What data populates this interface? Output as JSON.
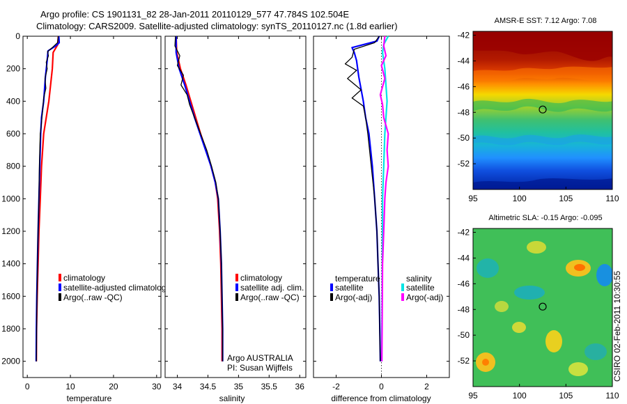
{
  "header": {
    "line1": "Argo profile: CS 1901131_82 28-Jan-2011 20110129_577 47.784S 102.504E",
    "line2": "Climatology: CARS2009. Satellite-adjusted climatology: synTS_20110127.nc (1.8d earlier)"
  },
  "colors": {
    "climatology": "#ff0000",
    "satellite": "#0000ff",
    "argo": "#000000",
    "sat_sal": "#00e5e5",
    "argo_sal": "#ff00ff"
  },
  "chart_data": [
    {
      "id": "temperature",
      "type": "line",
      "xlabel": "temperature",
      "ylabel": "",
      "xlim": [
        -1,
        31
      ],
      "ylim": [
        2100,
        0
      ],
      "xticks": [
        "0",
        "10",
        "20",
        "30"
      ],
      "xtick_values": [
        0,
        10,
        20,
        30
      ],
      "yticks": [
        "0",
        "200",
        "400",
        "600",
        "800",
        "1000",
        "1200",
        "1400",
        "1600",
        "1800",
        "2000"
      ],
      "ytick_values": [
        0,
        200,
        400,
        600,
        800,
        1000,
        1200,
        1400,
        1600,
        1800,
        2000
      ],
      "legend": [
        "climatology",
        "satellite-adjusted climatology",
        "Argo(..raw -QC)"
      ],
      "series": [
        {
          "name": "climatology",
          "color": "#ff0000",
          "width": 2.2,
          "points": [
            [
              7.2,
              0
            ],
            [
              7.1,
              50
            ],
            [
              6.0,
              100
            ],
            [
              5.8,
              200
            ],
            [
              5.4,
              300
            ],
            [
              5.0,
              400
            ],
            [
              4.4,
              500
            ],
            [
              3.8,
              600
            ],
            [
              3.3,
              800
            ],
            [
              3.0,
              1000
            ],
            [
              2.7,
              1200
            ],
            [
              2.5,
              1400
            ],
            [
              2.3,
              1600
            ],
            [
              2.15,
              1800
            ],
            [
              2.1,
              2000
            ]
          ]
        },
        {
          "name": "satellite-adjusted climatology",
          "color": "#0000ff",
          "width": 2.2,
          "points": [
            [
              7.3,
              0
            ],
            [
              7.4,
              40
            ],
            [
              6.6,
              60
            ],
            [
              4.8,
              90
            ],
            [
              4.6,
              150
            ],
            [
              4.2,
              250
            ],
            [
              3.8,
              400
            ],
            [
              3.3,
              500
            ],
            [
              3.1,
              600
            ],
            [
              2.9,
              800
            ],
            [
              2.7,
              1000
            ],
            [
              2.5,
              1200
            ],
            [
              2.35,
              1400
            ],
            [
              2.2,
              1600
            ],
            [
              2.1,
              1800
            ],
            [
              2.05,
              2000
            ]
          ]
        },
        {
          "name": "Argo(..raw -QC)",
          "color": "#000000",
          "width": 1.3,
          "points": [
            [
              7.2,
              0
            ],
            [
              7.0,
              40
            ],
            [
              5.8,
              70
            ],
            [
              4.7,
              95
            ],
            [
              4.9,
              120
            ],
            [
              4.4,
              160
            ],
            [
              4.6,
              200
            ],
            [
              4.1,
              260
            ],
            [
              4.3,
              320
            ],
            [
              3.8,
              380
            ],
            [
              3.6,
              440
            ],
            [
              3.4,
              500
            ],
            [
              3.2,
              560
            ],
            [
              3.0,
              600
            ],
            [
              2.9,
              700
            ],
            [
              2.8,
              800
            ],
            [
              2.7,
              1000
            ],
            [
              2.5,
              1200
            ],
            [
              2.35,
              1400
            ],
            [
              2.25,
              1600
            ],
            [
              2.15,
              1800
            ],
            [
              2.1,
              2000
            ]
          ]
        }
      ]
    },
    {
      "id": "salinity",
      "type": "line",
      "xlabel": "salinity",
      "ylabel": "",
      "xlim": [
        33.8,
        36.1
      ],
      "ylim": [
        2100,
        0
      ],
      "xticks": [
        "34",
        "34.5",
        "35",
        "35.5",
        "36"
      ],
      "xtick_values": [
        34,
        34.5,
        35,
        35.5,
        36
      ],
      "legend": [
        "climatology",
        "satellite adj. clim.",
        "Argo(..raw -QC)"
      ],
      "annotation": [
        "Argo AUSTRALIA",
        "PI: Susan Wijffels"
      ],
      "series": [
        {
          "name": "climatology",
          "color": "#ff0000",
          "width": 2.2,
          "points": [
            [
              33.98,
              0
            ],
            [
              33.99,
              100
            ],
            [
              34.05,
              200
            ],
            [
              34.14,
              300
            ],
            [
              34.22,
              400
            ],
            [
              34.3,
              500
            ],
            [
              34.38,
              600
            ],
            [
              34.47,
              700
            ],
            [
              34.55,
              800
            ],
            [
              34.62,
              900
            ],
            [
              34.66,
              1000
            ],
            [
              34.69,
              1200
            ],
            [
              34.71,
              1400
            ],
            [
              34.72,
              1600
            ],
            [
              34.73,
              1800
            ],
            [
              34.73,
              2000
            ]
          ]
        },
        {
          "name": "satellite adj. clim.",
          "color": "#0000ff",
          "width": 2.2,
          "points": [
            [
              33.98,
              0
            ],
            [
              33.98,
              100
            ],
            [
              34.03,
              200
            ],
            [
              34.12,
              300
            ],
            [
              34.2,
              400
            ],
            [
              34.28,
              500
            ],
            [
              34.37,
              600
            ],
            [
              34.46,
              700
            ],
            [
              34.55,
              800
            ],
            [
              34.62,
              900
            ],
            [
              34.67,
              1000
            ],
            [
              34.7,
              1200
            ],
            [
              34.72,
              1400
            ],
            [
              34.73,
              1600
            ],
            [
              34.74,
              1800
            ],
            [
              34.74,
              2000
            ]
          ]
        },
        {
          "name": "Argo(..raw -QC)",
          "color": "#000000",
          "width": 1.3,
          "points": [
            [
              33.97,
              0
            ],
            [
              33.96,
              60
            ],
            [
              34.04,
              120
            ],
            [
              34.0,
              180
            ],
            [
              34.1,
              240
            ],
            [
              34.06,
              300
            ],
            [
              34.16,
              360
            ],
            [
              34.2,
              420
            ],
            [
              34.26,
              480
            ],
            [
              34.32,
              540
            ],
            [
              34.4,
              620
            ],
            [
              34.48,
              700
            ],
            [
              34.56,
              800
            ],
            [
              34.63,
              900
            ],
            [
              34.67,
              1000
            ],
            [
              34.7,
              1200
            ],
            [
              34.72,
              1400
            ],
            [
              34.73,
              1600
            ],
            [
              34.74,
              1800
            ],
            [
              34.74,
              2000
            ]
          ]
        }
      ]
    },
    {
      "id": "difference",
      "type": "line",
      "xlabel": "difference from climatology",
      "ylabel": "",
      "xlim": [
        -3,
        3
      ],
      "ylim": [
        2100,
        0
      ],
      "xticks": [
        "-2",
        "0",
        "2"
      ],
      "xtick_values": [
        -2,
        0,
        2
      ],
      "legend_titles": [
        "temperature",
        "salinity"
      ],
      "legend": [
        "satellite",
        "Argo(-adj)",
        "satellite",
        "Argo(-adj)"
      ],
      "series": [
        {
          "name": "temperature satellite",
          "color": "#0000ff",
          "width": 2.2,
          "points": [
            [
              -0.1,
              0
            ],
            [
              -0.2,
              30
            ],
            [
              -1.3,
              70
            ],
            [
              -1.2,
              100
            ],
            [
              -1.1,
              150
            ],
            [
              -1.0,
              250
            ],
            [
              -0.8,
              400
            ],
            [
              -0.7,
              500
            ],
            [
              -0.55,
              600
            ],
            [
              -0.4,
              800
            ],
            [
              -0.3,
              1000
            ],
            [
              -0.2,
              1200
            ],
            [
              -0.15,
              1400
            ],
            [
              -0.1,
              1600
            ],
            [
              -0.07,
              1800
            ],
            [
              -0.05,
              2000
            ]
          ]
        },
        {
          "name": "temperature Argo(-adj)",
          "color": "#000000",
          "width": 1.3,
          "points": [
            [
              -0.1,
              0
            ],
            [
              -0.3,
              40
            ],
            [
              -1.2,
              80
            ],
            [
              -1.3,
              130
            ],
            [
              -1.6,
              170
            ],
            [
              -1.1,
              210
            ],
            [
              -1.5,
              260
            ],
            [
              -0.9,
              330
            ],
            [
              -1.3,
              380
            ],
            [
              -0.8,
              430
            ],
            [
              -0.7,
              500
            ],
            [
              -0.6,
              600
            ],
            [
              -0.45,
              800
            ],
            [
              -0.3,
              1000
            ],
            [
              -0.2,
              1200
            ],
            [
              -0.15,
              1400
            ],
            [
              -0.1,
              1600
            ],
            [
              -0.08,
              1800
            ],
            [
              -0.05,
              2000
            ]
          ]
        },
        {
          "name": "salinity satellite",
          "color": "#00e5e5",
          "width": 2.2,
          "points": [
            [
              0.3,
              0
            ],
            [
              0.1,
              50
            ],
            [
              0.05,
              100
            ],
            [
              0.15,
              200
            ],
            [
              0.2,
              300
            ],
            [
              0.25,
              400
            ],
            [
              0.2,
              500
            ],
            [
              0.15,
              600
            ],
            [
              0.1,
              800
            ],
            [
              0.05,
              1000
            ],
            [
              0.05,
              1200
            ],
            [
              0.04,
              1400
            ],
            [
              0.03,
              1600
            ],
            [
              0.02,
              1800
            ],
            [
              0.02,
              2000
            ]
          ]
        },
        {
          "name": "salinity Argo(-adj)",
          "color": "#ff00ff",
          "width": 2.2,
          "points": [
            [
              0.15,
              0
            ],
            [
              0.1,
              60
            ],
            [
              0.2,
              120
            ],
            [
              0.0,
              180
            ],
            [
              0.15,
              260
            ],
            [
              -0.05,
              360
            ],
            [
              0.05,
              420
            ],
            [
              0.1,
              500
            ],
            [
              0.3,
              600
            ],
            [
              0.25,
              700
            ],
            [
              0.3,
              800
            ],
            [
              0.2,
              900
            ],
            [
              0.15,
              1000
            ],
            [
              0.1,
              1200
            ],
            [
              0.05,
              1400
            ],
            [
              0.04,
              1600
            ],
            [
              0.03,
              1800
            ],
            [
              0.02,
              2000
            ]
          ]
        }
      ]
    }
  ],
  "maps": {
    "sst": {
      "title": "AMSR-E SST: 7.12 Argo: 7.08",
      "xticks": [
        "95",
        "100",
        "105",
        "110"
      ],
      "xtick_values": [
        95,
        100,
        105,
        110
      ],
      "yticks": [
        "-42",
        "-44",
        "-46",
        "-48",
        "-50",
        "-52"
      ],
      "ytick_values": [
        -42,
        -44,
        -46,
        -48,
        -50,
        -52
      ],
      "lon": [
        95,
        110
      ],
      "lat": [
        -54,
        -41.7
      ],
      "marker": [
        102.5,
        -47.78
      ]
    },
    "sla": {
      "title": "Altimetric SLA: -0.15 Argo: -0.095",
      "xticks": [
        "95",
        "100",
        "105",
        "110"
      ],
      "xtick_values": [
        95,
        100,
        105,
        110
      ],
      "yticks": [
        "-42",
        "-44",
        "-46",
        "-48",
        "-50",
        "-52"
      ],
      "ytick_values": [
        -42,
        -44,
        -46,
        -48,
        -50,
        -52
      ],
      "lon": [
        95,
        110
      ],
      "lat": [
        -54,
        -41.7
      ],
      "marker": [
        102.5,
        -47.78
      ]
    }
  },
  "footer": {
    "credit": "CSIRO 02-Feb-2011 10:30:55"
  }
}
